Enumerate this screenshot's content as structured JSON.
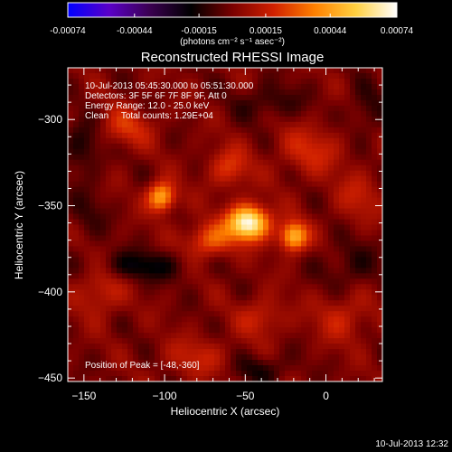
{
  "colorbar": {
    "ticks": [
      "-0.00074",
      "-0.00044",
      "-0.00015",
      "0.00015",
      "0.00044",
      "0.00074"
    ],
    "units": "(photons cm⁻² s⁻¹ asec⁻²)",
    "colors": [
      "#0000ff",
      "#5a00c8",
      "#3a0050",
      "#000000",
      "#7a0000",
      "#d02000",
      "#ff8000",
      "#ffd040",
      "#ffffff"
    ]
  },
  "footer": {
    "timestamp": "10-Jul-2013 12:32"
  },
  "chart_data": {
    "type": "heatmap",
    "title": "Reconstructed RHESSI Image",
    "xlabel": "Heliocentric X (arcsec)",
    "ylabel": "Heliocentric Y (arcsec)",
    "xlim": [
      -160,
      35
    ],
    "ylim": [
      -452,
      -270
    ],
    "x_ticks": [
      -150,
      -100,
      -50,
      0
    ],
    "y_ticks": [
      -300,
      -350,
      -400,
      -450
    ],
    "annotations": [
      "10-Jul-2013 05:45:30.000 to 05:51:30.000",
      "Detectors: 3F 5F 6F 7F 8F 9F, Att 0",
      "Energy Range: 12.0 - 25.0 keV",
      "Clean     Total counts: 1.29E+04"
    ],
    "peak_label": "Position of Peak = [-48,-360]",
    "peak": [
      -48,
      -360
    ],
    "sources": [
      {
        "x": -48,
        "y": -360,
        "flux": 0.00074,
        "sx": 9,
        "sy": 7
      },
      {
        "x": -102,
        "y": -345,
        "flux": 0.0005,
        "sx": 6,
        "sy": 6
      },
      {
        "x": -20,
        "y": -368,
        "flux": 0.00052,
        "sx": 6,
        "sy": 6
      },
      {
        "x": -72,
        "y": -370,
        "flux": 0.0003,
        "sx": 10,
        "sy": 7
      },
      {
        "x": -60,
        "y": -328,
        "flux": 0.00022,
        "sx": 9,
        "sy": 8
      },
      {
        "x": -125,
        "y": -305,
        "flux": 0.0002,
        "sx": 12,
        "sy": 8
      },
      {
        "x": -10,
        "y": -318,
        "flux": 0.00018,
        "sx": 14,
        "sy": 10
      },
      {
        "x": -140,
        "y": -400,
        "flux": 0.00018,
        "sx": 10,
        "sy": 10
      },
      {
        "x": 10,
        "y": -415,
        "flux": 0.00016,
        "sx": 12,
        "sy": 10
      },
      {
        "x": -80,
        "y": -438,
        "flux": 0.00015,
        "sx": 14,
        "sy": 8
      },
      {
        "x": -40,
        "y": -415,
        "flux": 0.00017,
        "sx": 10,
        "sy": 8
      },
      {
        "x": 20,
        "y": -345,
        "flux": 0.00014,
        "sx": 10,
        "sy": 10
      },
      {
        "x": -115,
        "y": -385,
        "flux": -0.0002,
        "sx": 18,
        "sy": 6
      },
      {
        "x": -150,
        "y": -315,
        "flux": -0.00016,
        "sx": 9,
        "sy": 11
      },
      {
        "x": -35,
        "y": -290,
        "flux": -0.00013,
        "sx": 14,
        "sy": 7
      },
      {
        "x": 15,
        "y": -385,
        "flux": -0.00012,
        "sx": 12,
        "sy": 10
      },
      {
        "x": -40,
        "y": -445,
        "flux": -0.00014,
        "sx": 12,
        "sy": 6
      },
      {
        "x": 25,
        "y": -295,
        "flux": -0.00012,
        "sx": 8,
        "sy": 10
      },
      {
        "x": -148,
        "y": -355,
        "flux": -9e-05,
        "sx": 8,
        "sy": 10
      }
    ]
  }
}
